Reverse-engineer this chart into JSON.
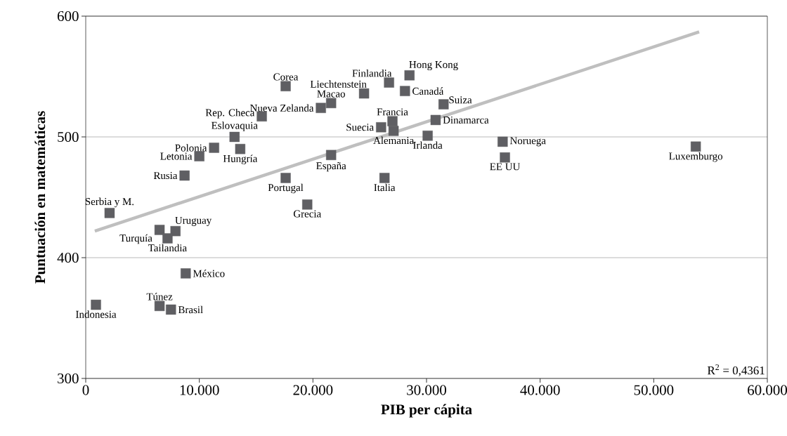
{
  "chart_data": {
    "type": "scatter",
    "xlabel": "PIB per cápita",
    "ylabel": "Puntuación en matemáticas",
    "xlim": [
      0,
      60000
    ],
    "ylim": [
      300,
      600
    ],
    "xticks": [
      0,
      {
        "value": 10000,
        "label": "10.000"
      },
      {
        "value": 20000,
        "label": "20.000"
      },
      {
        "value": 30000,
        "label": "30.000"
      },
      {
        "value": 40000,
        "label": "40.000"
      },
      {
        "value": 50000,
        "label": "50.000"
      },
      {
        "value": 60000,
        "label": "60.000"
      }
    ],
    "yticks": [
      300,
      400,
      500,
      600
    ],
    "grid": "y",
    "marker": "square",
    "series": [
      {
        "color": "#5f5f63",
        "x": [
          900,
          2100,
          6500,
          7900,
          7200,
          8800,
          6500,
          7500,
          17600,
          19500,
          8700,
          10000,
          11300,
          13100,
          13600,
          15500,
          17600,
          20700,
          21600,
          24500,
          21600,
          26000,
          27000,
          27100,
          26700,
          28500,
          28100,
          31500,
          30800,
          30100,
          26300,
          36700,
          36900,
          53700
        ],
        "values": [
          361,
          437,
          423,
          422,
          416,
          387,
          360,
          357,
          466,
          444,
          468,
          484,
          491,
          500,
          490,
          517,
          542,
          524,
          528,
          536,
          485,
          508,
          513,
          505,
          545,
          551,
          538,
          527,
          514,
          501,
          466,
          496,
          483,
          492
        ]
      },
      {
        "type": "line",
        "marker": "none",
        "color": "#bfbfbf",
        "x": [
          800,
          54000
        ],
        "values": [
          422,
          587
        ]
      }
    ],
    "annotations": [
      {
        "text": "Indonesia",
        "x": 900,
        "y": 361
      },
      {
        "text": "Serbia y M.",
        "x": 2100,
        "y": 437
      },
      {
        "text": "Turquía",
        "x": 6500,
        "y": 423
      },
      {
        "text": "Uruguay",
        "x": 7900,
        "y": 422
      },
      {
        "text": "Tailandia",
        "x": 7200,
        "y": 416
      },
      {
        "text": "México",
        "x": 8800,
        "y": 387
      },
      {
        "text": "Túnez",
        "x": 6500,
        "y": 360
      },
      {
        "text": "Brasil",
        "x": 7500,
        "y": 357
      },
      {
        "text": "Portugal",
        "x": 17600,
        "y": 466
      },
      {
        "text": "Grecia",
        "x": 19500,
        "y": 444
      },
      {
        "text": "Rusia",
        "x": 8700,
        "y": 468
      },
      {
        "text": "Letonia",
        "x": 10000,
        "y": 484
      },
      {
        "text": "Polonia",
        "x": 11300,
        "y": 491
      },
      {
        "text": "Eslovaquia",
        "x": 13100,
        "y": 500
      },
      {
        "text": "Hungría",
        "x": 13600,
        "y": 490
      },
      {
        "text": "Rep. Checa",
        "x": 15500,
        "y": 517
      },
      {
        "text": "Corea",
        "x": 17600,
        "y": 542
      },
      {
        "text": "Nueva Zelanda",
        "x": 20700,
        "y": 524
      },
      {
        "text": "Macao",
        "x": 21600,
        "y": 528
      },
      {
        "text": "Liechtenstein",
        "x": 24500,
        "y": 536
      },
      {
        "text": "España",
        "x": 21600,
        "y": 485
      },
      {
        "text": "Suecia",
        "x": 26000,
        "y": 508
      },
      {
        "text": "Francia",
        "x": 27000,
        "y": 513
      },
      {
        "text": "Alemania",
        "x": 27100,
        "y": 505
      },
      {
        "text": "Finlandia",
        "x": 26700,
        "y": 545
      },
      {
        "text": "Hong Kong",
        "x": 28500,
        "y": 551
      },
      {
        "text": "Canadá",
        "x": 28100,
        "y": 538
      },
      {
        "text": "Suiza",
        "x": 31500,
        "y": 527
      },
      {
        "text": "Dinamarca",
        "x": 30800,
        "y": 514
      },
      {
        "text": "Irlanda",
        "x": 30100,
        "y": 501
      },
      {
        "text": "Italia",
        "x": 26300,
        "y": 466
      },
      {
        "text": "Noruega",
        "x": 36700,
        "y": 496
      },
      {
        "text": "EE UU",
        "x": 36900,
        "y": 483
      },
      {
        "text": "Luxemburgo",
        "x": 53700,
        "y": 492
      },
      "R$^{2}$ = 0,4361"
    ]
  }
}
